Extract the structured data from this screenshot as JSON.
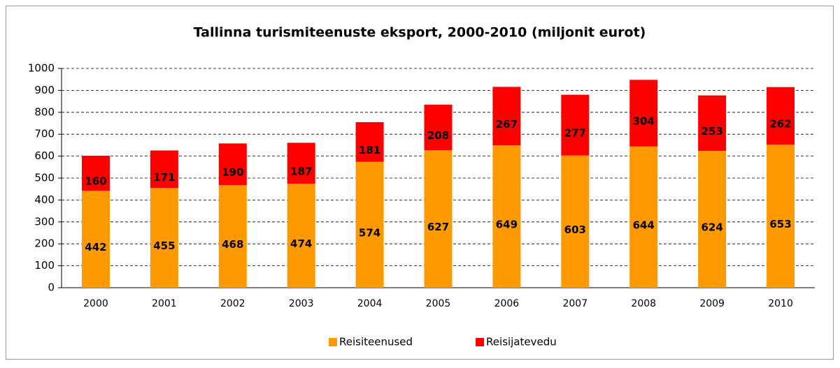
{
  "chart_data": {
    "type": "stacked_bar",
    "title": "Tallinna turismiteenuste eksport, 2000-2010 (miljonit eurot)",
    "categories": [
      "2000",
      "2001",
      "2002",
      "2003",
      "2004",
      "2005",
      "2006",
      "2007",
      "2008",
      "2009",
      "2010"
    ],
    "series": [
      {
        "name": "Reisiteenused",
        "color": "#ff9900",
        "values": [
          442,
          455,
          468,
          474,
          574,
          627,
          649,
          603,
          644,
          624,
          653
        ]
      },
      {
        "name": "Reisijatevedu",
        "color": "#ff0000",
        "values": [
          160,
          171,
          190,
          187,
          181,
          208,
          267,
          277,
          304,
          253,
          262
        ]
      }
    ],
    "ylim": [
      0,
      1000
    ],
    "yticks": [
      0,
      100,
      200,
      300,
      400,
      500,
      600,
      700,
      800,
      900,
      1000
    ],
    "grid": true,
    "legend": "bottom"
  }
}
